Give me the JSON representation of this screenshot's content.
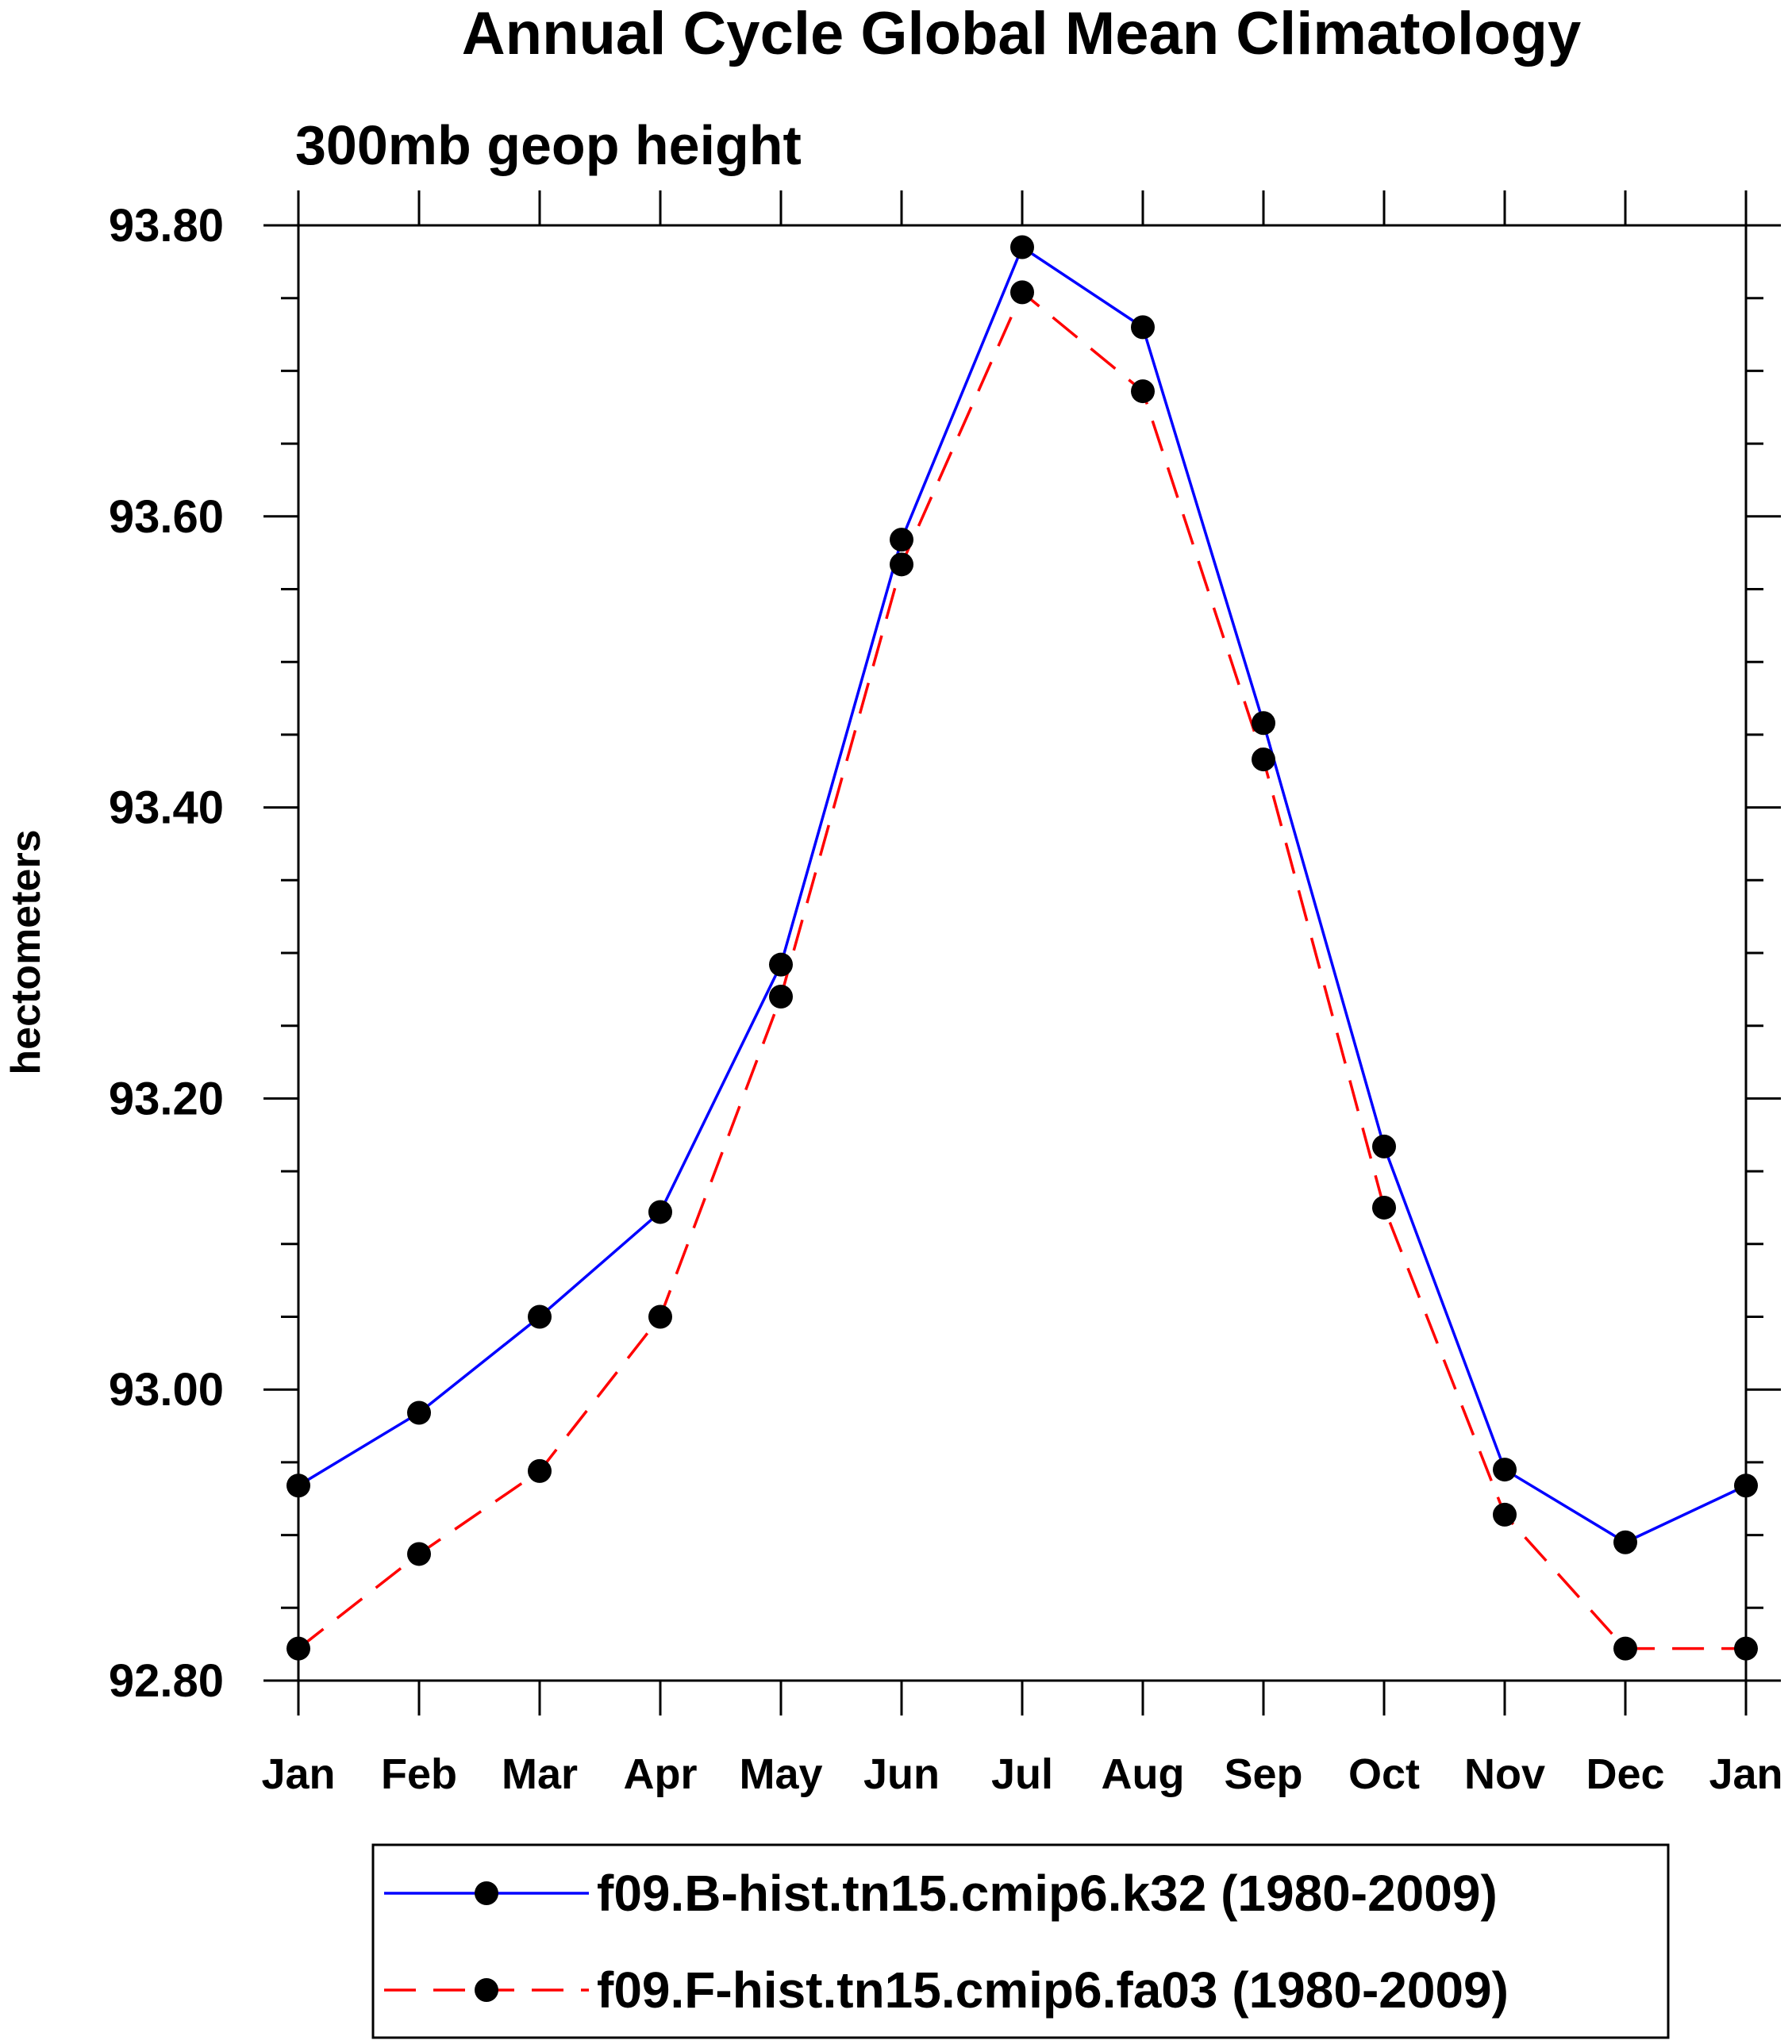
{
  "chart_data": {
    "type": "line",
    "title": "Annual Cycle Global Mean Climatology",
    "subtitle": "300mb geop height",
    "ylabel": "hectometers",
    "xlabel": "",
    "categories": [
      "Jan",
      "Feb",
      "Mar",
      "Apr",
      "May",
      "Jun",
      "Jul",
      "Aug",
      "Sep",
      "Oct",
      "Nov",
      "Dec",
      "Jan"
    ],
    "ylim": [
      92.8,
      93.8
    ],
    "yticks": [
      92.8,
      93.0,
      93.2,
      93.4,
      93.6,
      93.8
    ],
    "ytick_labels": [
      "92.80",
      "93.00",
      "93.20",
      "93.40",
      "93.60",
      "93.80"
    ],
    "y_minor_step": 0.05,
    "grid": false,
    "legend_position": "bottom",
    "series": [
      {
        "name": "f09.B-hist.tn15.cmip6.k32 (1980-2009)",
        "color": "#0000ff",
        "line_style": "solid",
        "marker": "filled-circle",
        "marker_color": "#000000",
        "values": [
          92.934,
          92.984,
          93.05,
          93.122,
          93.292,
          93.584,
          93.785,
          93.73,
          93.458,
          93.167,
          92.945,
          92.895,
          92.934
        ]
      },
      {
        "name": "f09.F-hist.tn15.cmip6.fa03 (1980-2009)",
        "color": "#ff0000",
        "line_style": "dashed",
        "marker": "filled-circle",
        "marker_color": "#000000",
        "values": [
          92.822,
          92.887,
          92.944,
          93.05,
          93.27,
          93.567,
          93.754,
          93.686,
          93.433,
          93.125,
          92.914,
          92.822,
          92.822
        ]
      }
    ]
  }
}
